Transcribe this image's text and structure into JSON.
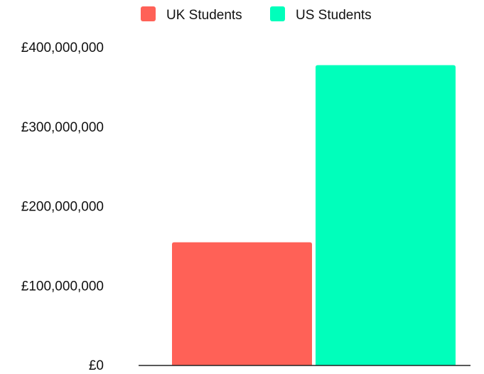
{
  "chart_data": {
    "type": "bar",
    "title": "",
    "xlabel": "",
    "ylabel": "",
    "categories": [
      ""
    ],
    "series": [
      {
        "name": "UK Students",
        "values": [
          155000000
        ],
        "color": "#ff6157"
      },
      {
        "name": "US Students",
        "values": [
          378000000
        ],
        "color": "#00ffbb"
      }
    ],
    "ylim": [
      0,
      400000000
    ],
    "yticks": [
      0,
      100000000,
      200000000,
      300000000,
      400000000
    ],
    "ytick_labels": [
      "£0",
      "£100,000,000",
      "£200,000,000",
      "£300,000,000",
      "£400,000,000"
    ],
    "grid": false,
    "legend_position": "top"
  }
}
